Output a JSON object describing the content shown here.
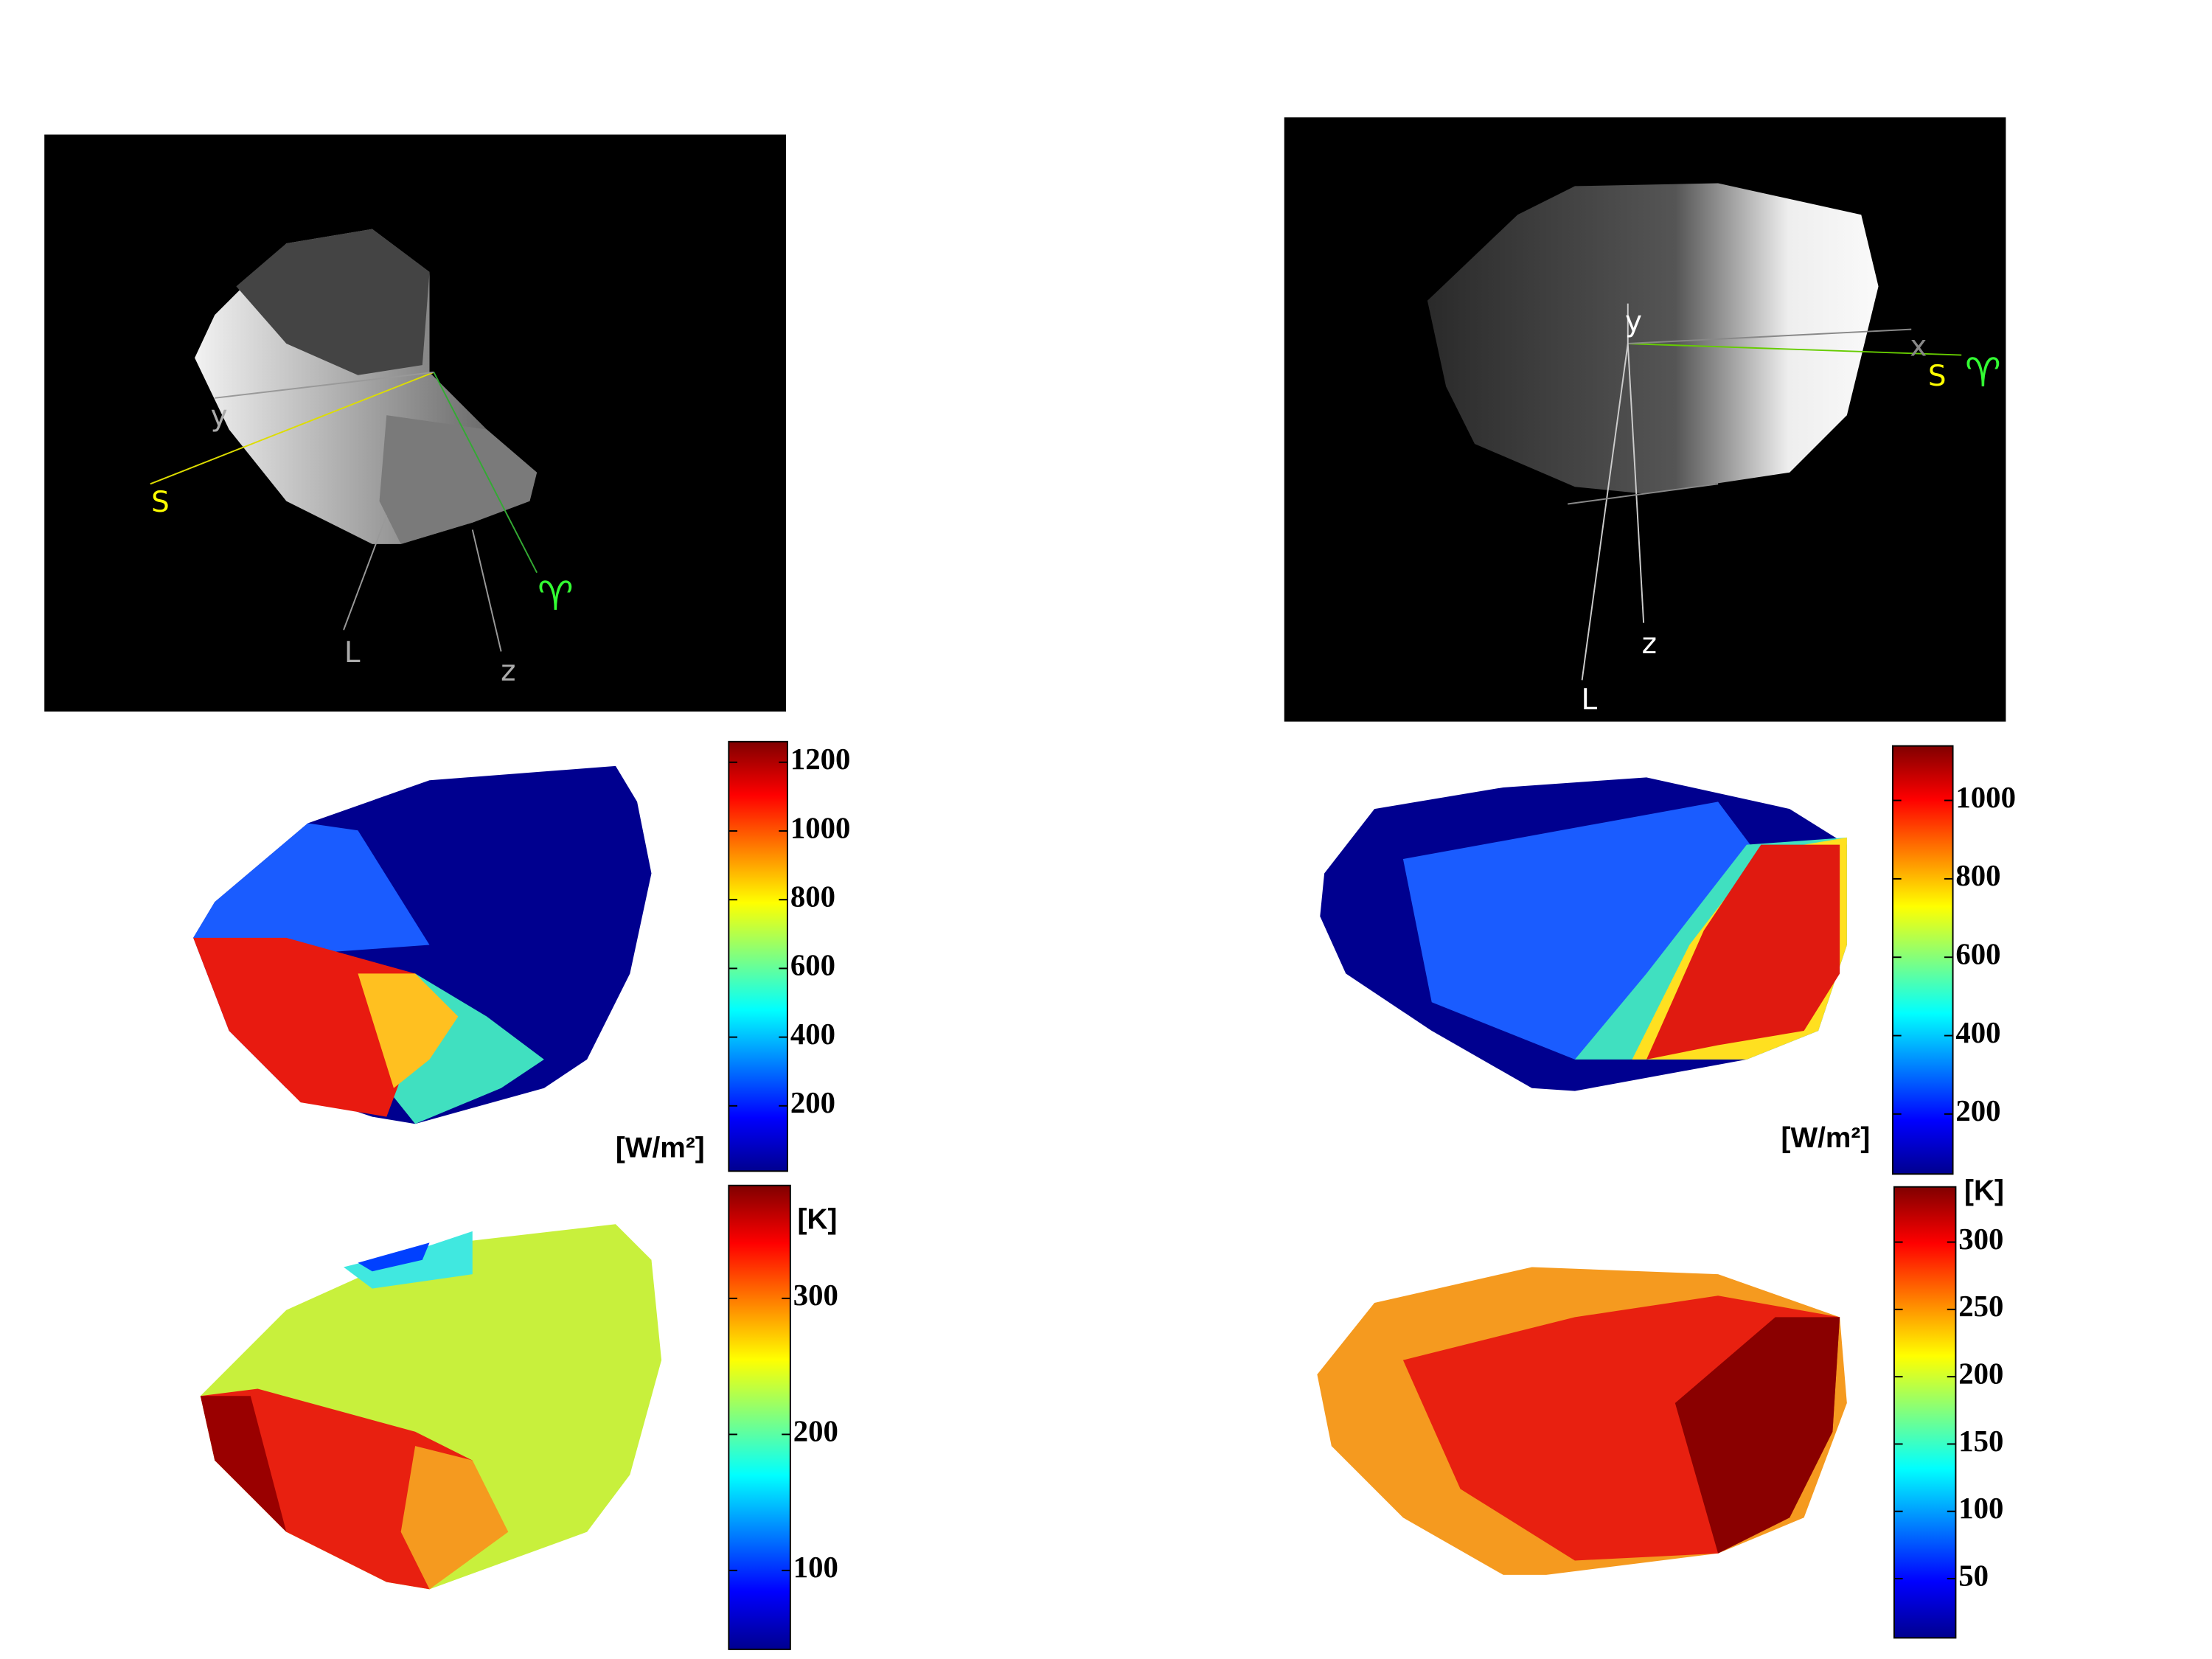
{
  "panels": [
    {
      "labels": [
        "S",
        "y",
        "L",
        "z",
        "♈"
      ]
    },
    {
      "labels": [
        "y",
        "x",
        "S",
        "♈",
        "z",
        "L"
      ]
    }
  ],
  "colorbars": [
    {
      "unit": "[W/m²]",
      "range": [
        10,
        1260
      ],
      "ticks": [
        200,
        400,
        600,
        800,
        1000,
        1200
      ]
    },
    {
      "unit": "[K]",
      "range": [
        42,
        383
      ],
      "ticks": [
        100,
        200,
        300
      ]
    },
    {
      "unit": "[W/m²]",
      "range": [
        47,
        1139
      ],
      "ticks": [
        200,
        400,
        600,
        800,
        1000
      ]
    },
    {
      "unit": "[K]",
      "range": [
        6,
        341
      ],
      "ticks": [
        50,
        100,
        150,
        200,
        250,
        300
      ]
    }
  ]
}
